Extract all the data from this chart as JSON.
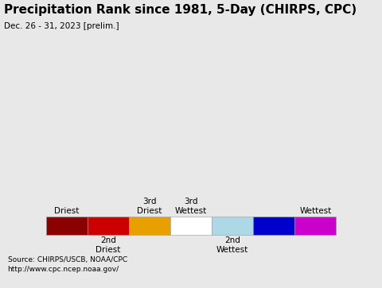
{
  "title": "Precipitation Rank since 1981, 5-Day (CHIRPS, CPC)",
  "subtitle": "Dec. 26 - 31, 2023 [prelim.]",
  "ocean_color": "#add8e6",
  "land_color": "#ffffff",
  "border_color": "#000000",
  "legend_bg_color": "#e8e8e8",
  "fig_bg_color": "#e8e8e8",
  "source_text": "Source: CHIRPS/USCB, NOAA/CPC\nhttp://www.cpc.ncep.noaa.gov/",
  "legend_colors": [
    "#8b0000",
    "#cc0000",
    "#e8a000",
    "#ffffff",
    "#add8e6",
    "#0000cc",
    "#cc00cc"
  ],
  "title_fontsize": 11,
  "subtitle_fontsize": 7.5,
  "source_fontsize": 6.5,
  "legend_fontsize": 7.5,
  "legend_label_fontsize": 7.5
}
